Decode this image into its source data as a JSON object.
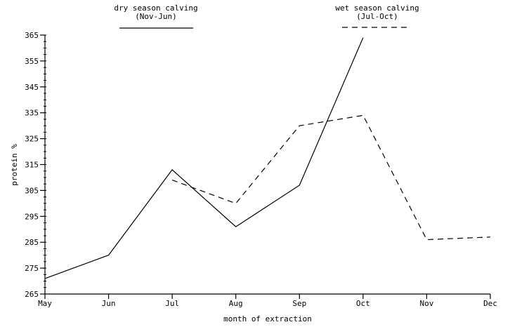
{
  "chart_data": {
    "type": "line",
    "title": "",
    "xlabel": "month of extraction",
    "ylabel": "protein %",
    "categories": [
      "May",
      "Jun",
      "Jul",
      "Aug",
      "Sep",
      "Oct",
      "Nov",
      "Dec"
    ],
    "y_ticks": [
      "265",
      "275",
      "285",
      "295",
      "305",
      "315",
      "325",
      "335",
      "345",
      "355",
      "365"
    ],
    "ylim": [
      265,
      365
    ],
    "series": [
      {
        "name": "dry season calving",
        "note": "(Nov-Jun)",
        "style": "solid",
        "values": [
          271,
          280,
          313,
          291,
          307,
          364,
          null,
          null
        ]
      },
      {
        "name": "wet season calving",
        "note": "(Jul-Oct)",
        "style": "dashed",
        "values": [
          null,
          null,
          309,
          300,
          330,
          334,
          286,
          287
        ]
      }
    ],
    "grid": false,
    "legend_position": "top"
  },
  "colors": {
    "line": "#000000",
    "background": "#ffffff"
  }
}
